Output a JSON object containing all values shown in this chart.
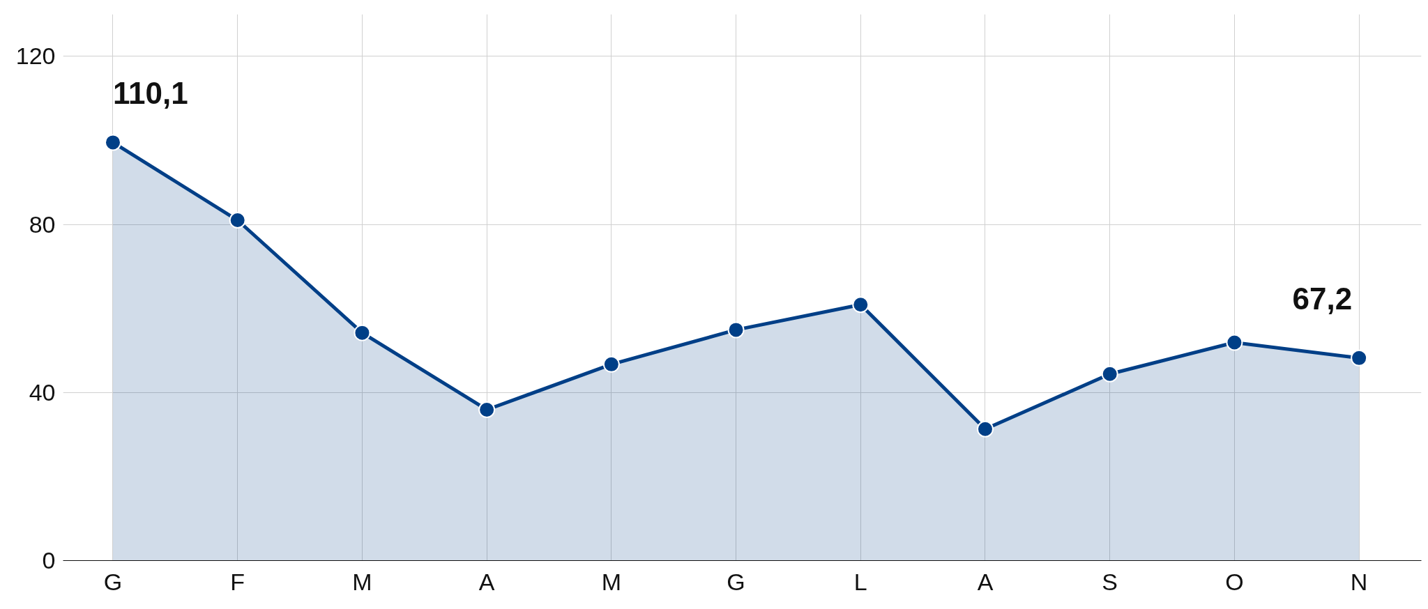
{
  "chart_data": {
    "type": "area",
    "categories": [
      "G",
      "F",
      "M",
      "A",
      "M",
      "G",
      "L",
      "A",
      "S",
      "O",
      "N"
    ],
    "series": [
      {
        "color": "#003f87",
        "values": [
          99.5,
          81.0,
          54.2,
          35.9,
          46.7,
          54.9,
          60.9,
          31.3,
          44.4,
          51.9,
          48.2
        ]
      }
    ],
    "ylim": [
      0,
      130
    ],
    "yticks": [
      0,
      40,
      80,
      120
    ],
    "grid": true,
    "marker": "circle",
    "line_style": "solid",
    "annotations": [
      "110,1",
      "67,2"
    ]
  }
}
